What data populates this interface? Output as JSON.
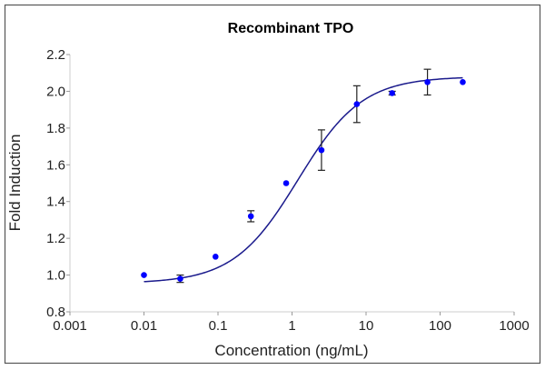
{
  "chart_data": {
    "type": "scatter",
    "title": "Recombinant TPO",
    "xlabel": "Concentration (ng/mL)",
    "ylabel": "Fold Induction",
    "xscale": "log",
    "xlim": [
      0.001,
      1000
    ],
    "ylim": [
      0.8,
      2.2
    ],
    "xticks": [
      "0.001",
      "0.01",
      "0.1",
      "1",
      "10",
      "100",
      "1000"
    ],
    "xtick_values": [
      0.001,
      0.01,
      0.1,
      1,
      10,
      100,
      1000
    ],
    "yticks": [
      "0.8",
      "1.0",
      "1.2",
      "1.4",
      "1.6",
      "1.8",
      "2.0",
      "2.2"
    ],
    "ytick_values": [
      0.8,
      1.0,
      1.2,
      1.4,
      1.6,
      1.8,
      2.0,
      2.2
    ],
    "grid": false,
    "point_color": "#0000ff",
    "curve_color": "#1a1a8c",
    "points": [
      {
        "x": 0.01,
        "y": 1.0,
        "err": 0
      },
      {
        "x": 0.0309,
        "y": 0.98,
        "err": 0.02
      },
      {
        "x": 0.0926,
        "y": 1.1,
        "err": 0
      },
      {
        "x": 0.278,
        "y": 1.32,
        "err": 0.03
      },
      {
        "x": 0.833,
        "y": 1.5,
        "err": 0
      },
      {
        "x": 2.5,
        "y": 1.68,
        "err": 0.11
      },
      {
        "x": 7.5,
        "y": 1.93,
        "err": 0.1
      },
      {
        "x": 22.5,
        "y": 1.99,
        "err": 0.01
      },
      {
        "x": 67.5,
        "y": 2.05,
        "err": 0.07
      },
      {
        "x": 202.5,
        "y": 2.05,
        "err": 0
      }
    ],
    "fit": {
      "model": "4PL",
      "bottom": 0.955,
      "top": 2.08,
      "ec50": 1.2,
      "hill": 1.0,
      "xrange": [
        0.01,
        202.5
      ]
    }
  }
}
